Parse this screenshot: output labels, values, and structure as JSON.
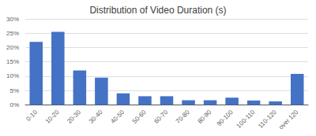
{
  "chart_data": {
    "type": "bar",
    "title": "Distribution of Video Duration (s)",
    "categories": [
      "0-10",
      "10-20",
      "20-30",
      "30-40",
      "40-50",
      "50-60",
      "60-70",
      "70-80",
      "80-90",
      "90-100",
      "100-110",
      "110-120",
      "over 120"
    ],
    "values": [
      0.22,
      0.255,
      0.12,
      0.095,
      0.04,
      0.03,
      0.03,
      0.016,
      0.016,
      0.025,
      0.015,
      0.012,
      0.108
    ],
    "color": "#4472C4",
    "ylim": [
      0,
      0.3
    ],
    "yticks": [
      {
        "value": 0,
        "label": "0%"
      },
      {
        "value": 0.05,
        "label": "5%"
      },
      {
        "value": 0.1,
        "label": "10%"
      },
      {
        "value": 0.15,
        "label": "15%"
      },
      {
        "value": 0.2,
        "label": "20%"
      },
      {
        "value": 0.25,
        "label": "25%"
      },
      {
        "value": 0.3,
        "label": "30%"
      }
    ],
    "grid": true
  }
}
